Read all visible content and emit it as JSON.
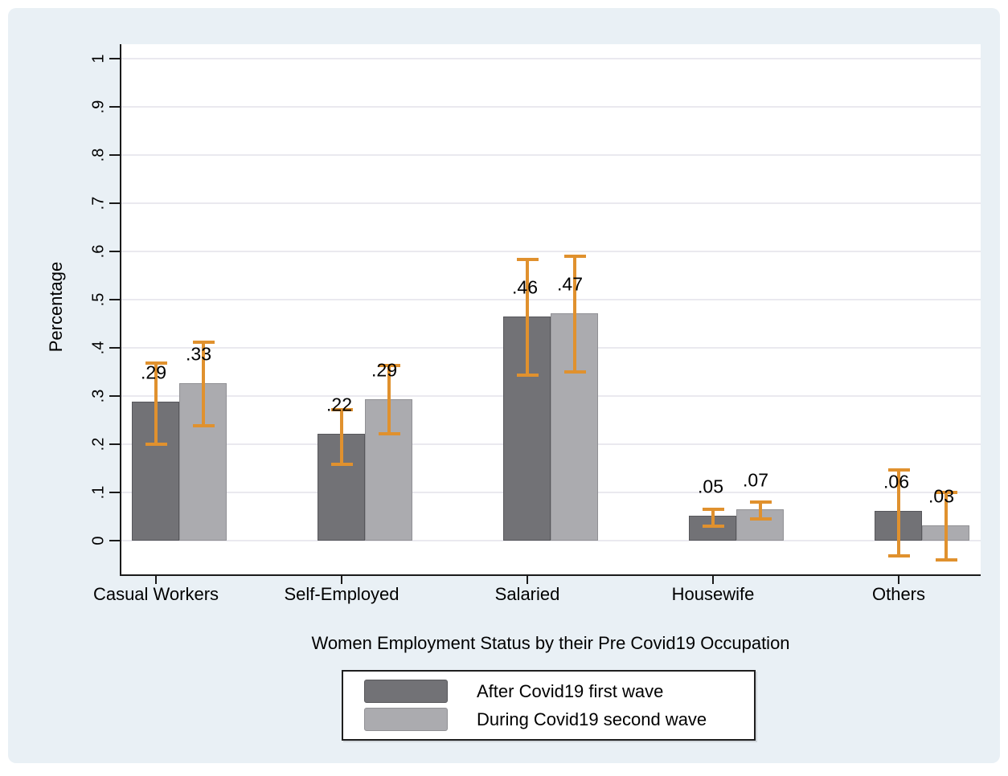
{
  "figure": {
    "background_color": "#e9f0f5",
    "plot_background_color": "#ffffff",
    "gridline_color": "#eae9ef"
  },
  "chart_data": {
    "type": "bar",
    "title": "",
    "xlabel": "Women Employment Status by their Pre Covid19 Occupation",
    "ylabel": "Percentage",
    "ylim": [
      -0.07,
      1.03
    ],
    "grid": "horizontal",
    "legend_position": "bottom-center",
    "yticks": [
      {
        "label": "0",
        "value": 0.0
      },
      {
        "label": ".1",
        "value": 0.1
      },
      {
        "label": ".2",
        "value": 0.2
      },
      {
        "label": ".3",
        "value": 0.3
      },
      {
        "label": ".4",
        "value": 0.4
      },
      {
        "label": ".5",
        "value": 0.5
      },
      {
        "label": ".6",
        "value": 0.6
      },
      {
        "label": ".7",
        "value": 0.7
      },
      {
        "label": ".8",
        "value": 0.8
      },
      {
        "label": ".9",
        "value": 0.9
      },
      {
        "label": "1",
        "value": 1.0
      }
    ],
    "categories": [
      "Casual Workers",
      "Self-Employed",
      "Salaried",
      "Housewife",
      "Others"
    ],
    "series": [
      {
        "name": "After Covid19 first wave",
        "color": "#727276",
        "border_color": "#57575b",
        "values": [
          0.288,
          0.222,
          0.465,
          0.052,
          0.062
        ],
        "labels": [
          ".29",
          ".22",
          ".46",
          ".05",
          ".06"
        ],
        "ci_low": [
          0.2,
          0.158,
          0.343,
          0.03,
          -0.032
        ],
        "ci_high": [
          0.368,
          0.272,
          0.583,
          0.065,
          0.147
        ]
      },
      {
        "name": "During Covid19 second wave",
        "color": "#ababaf",
        "border_color": "#919195",
        "values": [
          0.327,
          0.293,
          0.472,
          0.065,
          0.032
        ],
        "labels": [
          ".33",
          ".29",
          ".47",
          ".07",
          ".03"
        ],
        "ci_low": [
          0.238,
          0.222,
          0.35,
          0.045,
          -0.04
        ],
        "ci_high": [
          0.412,
          0.363,
          0.59,
          0.08,
          0.1
        ]
      }
    ],
    "error_bar_color": "#e0912e"
  }
}
